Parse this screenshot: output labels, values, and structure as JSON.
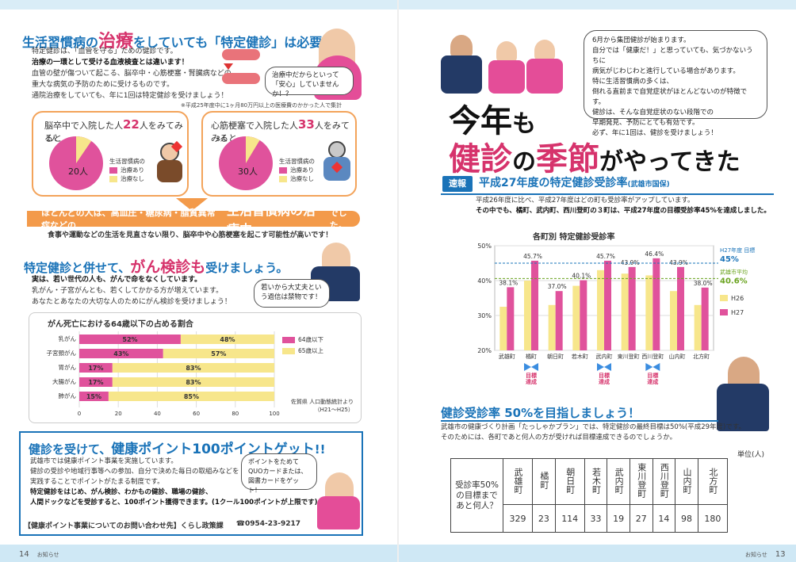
{
  "left": {
    "title_pre": "生活習慣病の",
    "title_em": "治療",
    "title_post": "をしていても「特定健診」は必要！",
    "intro_lines": [
      "特定健診は、「血管を守る」ための健診です。",
      "治療の一環として受ける血液検査とは違います！",
      "血管の壁が傷ついて起こる、脳卒中・心筋梗塞・腎臓病などの",
      "重大な病気の予防のために受けるものです。",
      "通院治療をしていても、年に1回は特定健診を受けましょう！"
    ],
    "bubble1": "治療中だからといって「安心」していませんか！？",
    "footnote": "※平成25年度中に1ヶ月80万円以上の医療費のかかった人で集計",
    "panel1": {
      "title_pre": "脳卒中で入院した人",
      "count": "22",
      "title_post": "人をみてみると",
      "minor": "2人",
      "major": "20人"
    },
    "panel2": {
      "title_pre": "心筋梗塞で入院した人",
      "count": "33",
      "title_post": "人をみてみると",
      "minor": "3人",
      "major": "30人"
    },
    "legend_title": "生活習慣病の",
    "legend_yes": "治療あり",
    "legend_no": "治療なし",
    "orange_pre": "ほとんどの人は、高血圧・糖尿病・脂質異常症などの",
    "orange_em": "生活習慣病の治療中",
    "orange_post": "でした。",
    "orange_note": "食事や運動などの生活を見直さない限り、脳卒中や心筋梗塞を起こす可能性が高いです！",
    "cancer_title_pre": "特定健診と併せて、",
    "cancer_title_em": "がん検診も",
    "cancer_title_post": "受けましょう。",
    "cancer_lines": [
      "実は、若い世代の人も、がんで命をなくしています。",
      "乳がん・子宮がんとも、若くしてかかる方が増えています。",
      "あなたとあなたの大切な人のためにがん検診を受けましょう！"
    ],
    "bubble2": "若いから大丈夫という過信は禁物です！",
    "bar_title": "がん死亡における64歳以下の占める割合",
    "bar_source": "佐賀県 人口動態統計より（H21〜H25）",
    "bar_legend_a": "64歳以下",
    "bar_legend_b": "65歳以上",
    "point_title_pre": "健診を受けて、",
    "point_title_em": "健康ポイント100ポイントゲット",
    "point_title_post": "!!",
    "point_lines": [
      "武雄市では健康ポイント事業を実施しています。",
      "健診の受診や地域行事等への参加、自分で決めた毎日の取組みなどを",
      "実践することでポイントがたまる制度です。",
      "特定健診をはじめ、がん検診、わかもの健診、職場の健診、",
      "人間ドックなどを受診すると、100ポイント獲得できます。(1クール100ポイントが上限です)"
    ],
    "bubble3": "ポイントをためてQUOカードまたは、図書カードをゲット！",
    "contact_label": "【健康ポイント事業についてのお問い合わせ先】くらし政策課",
    "contact_tel": "☎0954-23-9217",
    "page_no": "14",
    "page_label": "お知らせ"
  },
  "right": {
    "bubble_lines": [
      "6月から集団健診が始まります。",
      "自分では「健康だ！」と思っていても、気づかないうちに",
      "病気がじわじわと進行している場合があります。",
      "特に生活習慣病の多くは、",
      "倒れる直前まで自覚症状がほとんどないのが特徴です。",
      "健診は、そんな自覚症状のない段階での",
      "早期発見、予防にとても有効です。",
      "必ず、年に1回は、健診を受けましょう！"
    ],
    "headline1_a": "今年",
    "headline1_b": "も",
    "headline2_a": "健診",
    "headline2_b": "の",
    "headline2_c": "季節",
    "headline2_d": "がやってきた",
    "sokuho": "速報",
    "rate_title": "平成27年度の特定健診受診率",
    "rate_title_sub": "(武雄市国保)",
    "rate_line1": "平成26年度に比べ、平成27年度はどの町も受診率がアップしています。",
    "rate_line2": "その中でも、橘町、武内町、西川登町の３町は、平成27年度の目標受診率45%を達成しました。",
    "goal_title": "健診受診率 50%を目指しましょう！",
    "goal_line1": "武雄市の健康づくり計画「たっしゃかプラン」では、特定健診の最終目標は50%(平成29年度)です。",
    "goal_line2": "そのためには、各町であと何人の方が受ければ目標達成できるのでしょうか。",
    "unit": "単位(人)",
    "table_row_label": "受診率50%の目標まであと何人？",
    "towns": [
      "武雄町",
      "橘町",
      "朝日町",
      "若木町",
      "武内町",
      "東川登町",
      "西川登町",
      "山内町",
      "北方町"
    ],
    "remaining": [
      "329",
      "23",
      "114",
      "33",
      "19",
      "27",
      "14",
      "98",
      "180"
    ],
    "page_no": "13",
    "page_label": "お知らせ"
  },
  "chart_data": [
    {
      "type": "bar",
      "title": "各町別 特定健診受診率",
      "categories": [
        "武雄町",
        "橘町",
        "朝日町",
        "若木町",
        "武内町",
        "東川登町",
        "西川登町",
        "山内町",
        "北方町"
      ],
      "series": [
        {
          "name": "H26",
          "color": "#f7e68b",
          "values": [
            32.5,
            40.0,
            33.0,
            38.5,
            43.0,
            42.0,
            41.5,
            37.0,
            33.0
          ]
        },
        {
          "name": "H27",
          "color": "#e0529c",
          "values": [
            38.1,
            45.7,
            37.0,
            40.1,
            45.7,
            43.9,
            46.4,
            43.9,
            38.0
          ]
        }
      ],
      "value_labels": [
        "38.1%",
        "45.7%",
        "37.0%",
        "40.1%",
        "45.7%",
        "43.9%",
        "46.4%",
        "43.9%",
        "38.0%"
      ],
      "ylim": [
        20,
        50
      ],
      "yticks": [
        "20%",
        "30%",
        "40%",
        "50%"
      ],
      "target_label": "H27年度 目標",
      "target_value": 45,
      "target_text": "45%",
      "avg_label": "武雄市平均",
      "avg_value": 40.6,
      "avg_text": "40.6%",
      "achieved_label": "目標達成",
      "achieved_towns": [
        "橘町",
        "武内町",
        "西川登町"
      ]
    },
    {
      "type": "bar",
      "title": "がん死亡における64歳以下の占める割合",
      "categories": [
        "乳がん",
        "子宮頸がん",
        "胃がん",
        "大腸がん",
        "肺がん"
      ],
      "series": [
        {
          "name": "64歳以下",
          "color": "#e0529c",
          "values": [
            52,
            43,
            17,
            17,
            15
          ]
        },
        {
          "name": "65歳以上",
          "color": "#f7e68b",
          "values": [
            48,
            57,
            83,
            83,
            85
          ]
        }
      ],
      "xticks": [
        "0",
        "20",
        "40",
        "60",
        "80",
        "100"
      ],
      "xlim": [
        0,
        100
      ]
    }
  ]
}
